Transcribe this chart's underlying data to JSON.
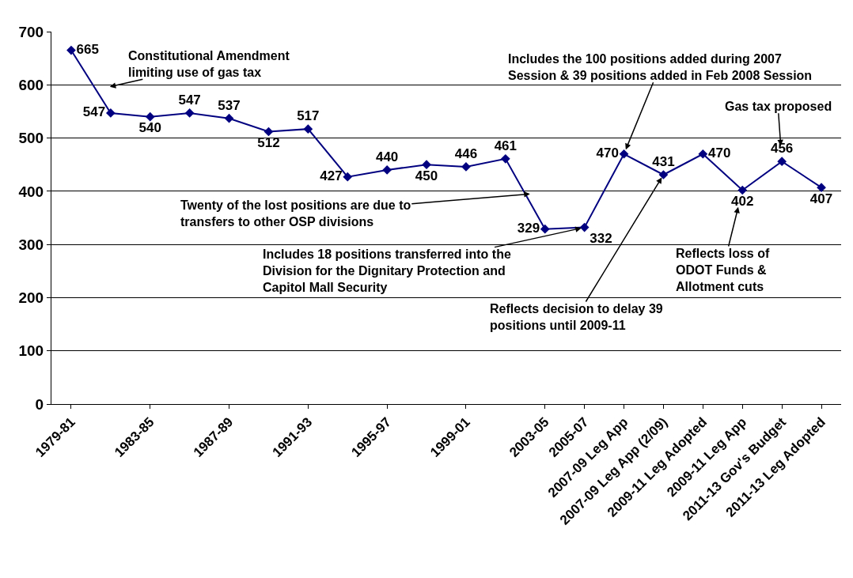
{
  "chart_data": {
    "type": "line",
    "categories": [
      "1979-81",
      null,
      "1983-85",
      null,
      "1987-89",
      null,
      "1991-93",
      null,
      "1995-97",
      null,
      "1999-01",
      null,
      "2003-05",
      "2005-07",
      "2007-09 Leg App",
      "2007-09 Leg App (2/09)",
      "2009-11 Leg Adopted",
      "2009-11 Leg App",
      "2011-13 Gov's Budget",
      "2011-13 Leg Adopted"
    ],
    "series": [
      {
        "color": "#000080",
        "values": [
          665,
          547,
          540,
          547,
          537,
          512,
          517,
          427,
          440,
          450,
          446,
          461,
          329,
          332,
          470,
          431,
          470,
          402,
          456,
          407
        ]
      }
    ],
    "ylim": [
      0,
      700
    ],
    "yticks": [
      0,
      100,
      200,
      300,
      400,
      500,
      600,
      700
    ],
    "grid": "y",
    "legend": false,
    "marker": "diamond",
    "line_style": "solid",
    "data_labels": true,
    "annotations": [
      "Constitutional Amendment limiting use of gas tax",
      {
        "text": "Includes the 100 positions added during 2007 Session & 39 positions added in Feb 2008 Session",
        "x": "2007-09 Leg App",
        "y": 470
      },
      {
        "text": "Gas tax proposed",
        "x": "2011-13 Gov's Budget",
        "y": 456
      },
      "Twenty of the lost positions are due to transfers to other OSP divisions",
      {
        "text": "Includes 18 positions transferred into the Division for the Dignitary Protection and Capitol Mall Security",
        "x": "2005-07",
        "y": 332
      },
      {
        "text": "Reflects decision to delay 39 positions until 2009-11",
        "x": "2007-09 Leg App (2/09)",
        "y": 431
      },
      {
        "text": "Reflects loss of ODOT Funds & Allotment cuts",
        "x": "2009-11 Leg App",
        "y": 402
      }
    ]
  }
}
